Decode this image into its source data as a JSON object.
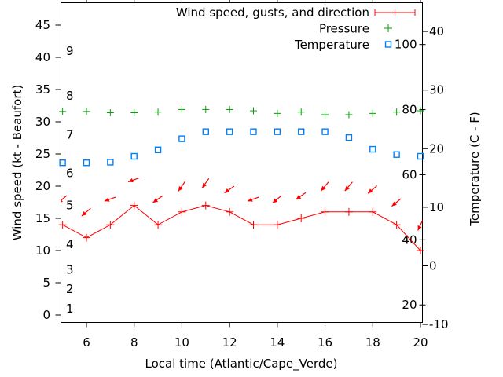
{
  "chart_data": {
    "type": "line",
    "title": "",
    "xlabel": "Local time (Atlantic/Cape_Verde)",
    "ylabel_left": "Wind speed (kt - Beaufort)",
    "ylabel_right": "Temperature (C - F)",
    "x_ticks": [
      6,
      8,
      10,
      12,
      14,
      16,
      18,
      20
    ],
    "x_range": [
      4.9,
      20.1
    ],
    "left_axis_ticks_kt": [
      0,
      5,
      10,
      15,
      20,
      25,
      30,
      35,
      40,
      45
    ],
    "left_axis_range_kt": [
      0,
      48.5
    ],
    "beaufort_inner_labels": [
      {
        "bft": "9",
        "kt": 41
      },
      {
        "bft": "8",
        "kt": 34
      },
      {
        "bft": "7",
        "kt": 28
      },
      {
        "bft": "6",
        "kt": 22
      },
      {
        "bft": "5",
        "kt": 17
      },
      {
        "bft": "4",
        "kt": 11
      },
      {
        "bft": "3",
        "kt": 7
      },
      {
        "bft": "2",
        "kt": 4
      },
      {
        "bft": "1",
        "kt": 1
      }
    ],
    "right_axis_ticks_c": [
      40,
      30,
      20,
      10,
      0,
      -10
    ],
    "right_axis_range_c": [
      -10,
      45
    ],
    "fahrenheit_inner_labels": [
      100,
      80,
      60,
      40,
      20
    ],
    "x": [
      5,
      6,
      7,
      8,
      9,
      10,
      11,
      12,
      13,
      14,
      15,
      16,
      17,
      18,
      19,
      20
    ],
    "legend_position": "top-right-inside",
    "grid": false,
    "series": [
      {
        "name": "Wind speed, gusts, and direction",
        "color": "#ff0000",
        "marker": "plus",
        "style": "line-with-markers-and-direction-arrows",
        "wind_speed_kt": [
          14,
          12,
          14,
          17,
          14,
          16,
          17,
          16,
          14,
          14,
          15,
          16,
          16,
          16,
          14,
          10
        ],
        "gust_kt": [
          18,
          16,
          18,
          21,
          18,
          20,
          20.5,
          19.5,
          18,
          18,
          18.5,
          20,
          20,
          19.5,
          17.5,
          14
        ],
        "arrow_angle_deg_screen": [
          140,
          140,
          160,
          160,
          145,
          125,
          125,
          145,
          160,
          140,
          145,
          130,
          130,
          140,
          140,
          115
        ]
      },
      {
        "name": "Pressure",
        "color": "#00a000",
        "marker": "plus",
        "style": "points",
        "note": "no numeric pressure axis shown; values are plotted height on the left-axis (kt) scale",
        "plotted_kt": [
          31.6,
          31.6,
          31.4,
          31.4,
          31.5,
          31.9,
          31.9,
          31.9,
          31.7,
          31.3,
          31.5,
          31.1,
          31.1,
          31.3,
          31.5,
          31.7
        ]
      },
      {
        "name": "Temperature",
        "color": "#0080ff",
        "marker": "open-square",
        "style": "points",
        "temperature_c": [
          17.6,
          17.6,
          17.7,
          18.7,
          19.8,
          21.7,
          22.9,
          22.9,
          22.9,
          22.9,
          22.9,
          22.9,
          21.9,
          19.9,
          19.0,
          18.7
        ]
      }
    ],
    "colors": {
      "wind": "#ff0000",
      "pressure": "#00a000",
      "temperature": "#0080ff",
      "frame": "#000000",
      "text": "#000000",
      "background": "#ffffff"
    }
  }
}
